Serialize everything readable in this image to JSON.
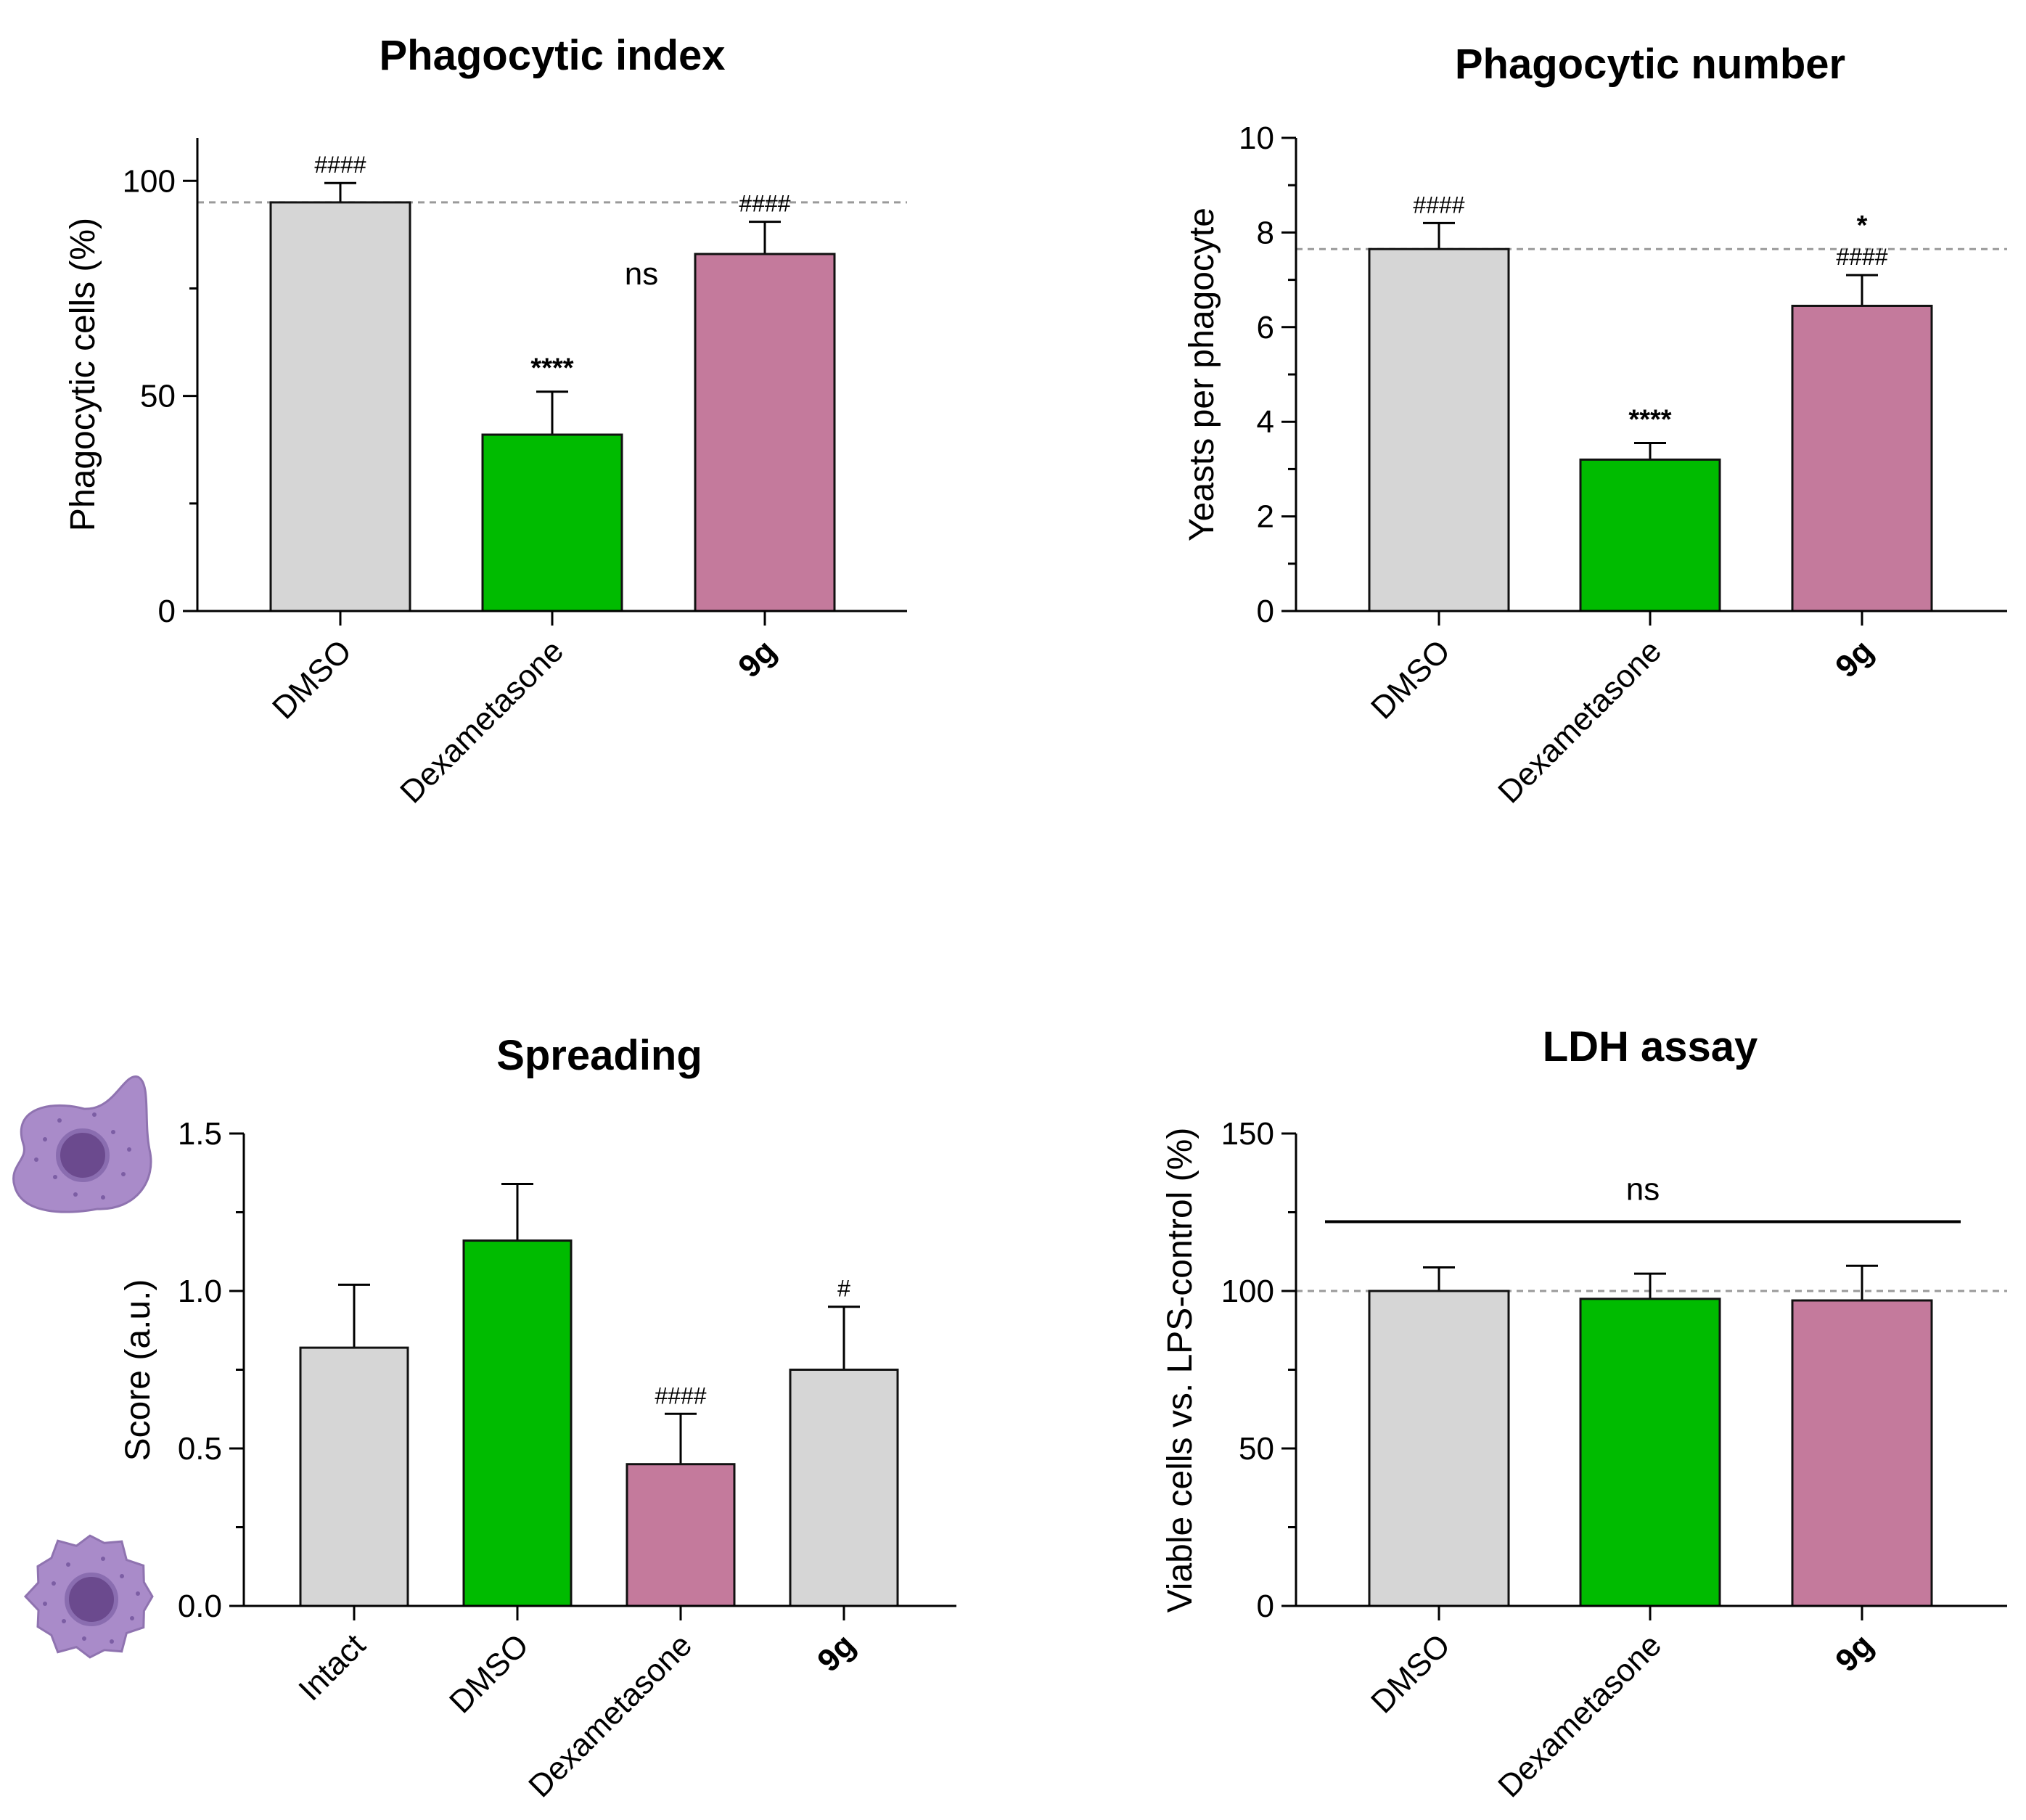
{
  "colors": {
    "gray": "#d6d6d6",
    "green": "#00bb00",
    "mauve": "#c47a9c",
    "cell_body": "#a98bc9",
    "cell_nucleus": "#6b4a8e"
  },
  "icons": {
    "spread_cell": "spread-macrophage-icon",
    "round_cell": "round-macrophage-icon"
  },
  "chart_data": [
    {
      "type": "bar",
      "title": "Phagocytic index",
      "xlabel": "",
      "ylabel": "Phagocytic cells (%)",
      "ylim": [
        0,
        110
      ],
      "yticks": [
        0,
        50,
        100
      ],
      "ytick_labels": [
        "0",
        "50",
        "100"
      ],
      "minor_ticks": [
        25,
        75
      ],
      "reference_line": 95,
      "categories": [
        "DMSO",
        "Dexametasone",
        "9g"
      ],
      "bold_categories": [
        "9g"
      ],
      "values": [
        95,
        41,
        83
      ],
      "errors": [
        4.5,
        10,
        7.5
      ],
      "bar_colors": [
        "#d6d6d6",
        "#00bb00",
        "#c47a9c"
      ],
      "annotations": [
        {
          "index": 0,
          "text": "####",
          "style": "hash"
        },
        {
          "index": 1,
          "text": "****",
          "style": "star"
        },
        {
          "index": 2,
          "text": "####",
          "style": "hash"
        }
      ],
      "faint_text": "ns"
    },
    {
      "type": "bar",
      "title": "Phagocytic number",
      "xlabel": "",
      "ylabel": "Yeasts per phagocyte",
      "ylim": [
        0,
        10
      ],
      "yticks": [
        0,
        2,
        4,
        6,
        8,
        10
      ],
      "ytick_labels": [
        "0",
        "2",
        "4",
        "6",
        "8",
        "10"
      ],
      "minor_ticks": [
        1,
        3,
        5,
        7,
        9
      ],
      "reference_line": 7.65,
      "categories": [
        "DMSO",
        "Dexametasone",
        "9g"
      ],
      "bold_categories": [
        "9g"
      ],
      "values": [
        7.65,
        3.2,
        6.45
      ],
      "errors": [
        0.55,
        0.35,
        0.65
      ],
      "bar_colors": [
        "#d6d6d6",
        "#00bb00",
        "#c47a9c"
      ],
      "annotations": [
        {
          "index": 0,
          "text": "####",
          "style": "hash"
        },
        {
          "index": 1,
          "text": "****",
          "style": "star"
        },
        {
          "index": 2,
          "text": "####",
          "style": "hash"
        },
        {
          "index": 2,
          "text": "*",
          "style": "star"
        }
      ]
    },
    {
      "type": "bar",
      "title": "Spreading",
      "xlabel": "",
      "ylabel": "Score (a.u.)",
      "ylim": [
        0,
        1.5
      ],
      "yticks": [
        0,
        0.5,
        1.0,
        1.5
      ],
      "ytick_labels": [
        "0.0",
        "0.5",
        "1.0",
        "1.5"
      ],
      "minor_ticks": [
        0.25,
        0.75,
        1.25
      ],
      "categories": [
        "Intact",
        "DMSO",
        "Dexametasone",
        "9g"
      ],
      "bold_categories": [
        "9g"
      ],
      "values": [
        0.82,
        1.16,
        0.45,
        0.75
      ],
      "errors": [
        0.2,
        0.18,
        0.16,
        0.2
      ],
      "bar_colors": [
        "#d6d6d6",
        "#00bb00",
        "#c47a9c",
        "#d6d6d6"
      ],
      "annotations": [
        {
          "index": 2,
          "text": "####",
          "style": "hash"
        },
        {
          "index": 3,
          "text": "#",
          "style": "hash"
        }
      ]
    },
    {
      "type": "bar",
      "title": "LDH assay",
      "xlabel": "",
      "ylabel": "Viable cells vs. LPS-control (%)",
      "ylim": [
        0,
        150
      ],
      "yticks": [
        0,
        50,
        100,
        150
      ],
      "ytick_labels": [
        "0",
        "50",
        "100",
        "150"
      ],
      "minor_ticks": [
        25,
        75,
        125
      ],
      "reference_line": 100,
      "categories": [
        "DMSO",
        "Dexametasone",
        "9g"
      ],
      "bold_categories": [
        "9g"
      ],
      "values": [
        100,
        97.5,
        97
      ],
      "errors": [
        7.5,
        8,
        11
      ],
      "bar_colors": [
        "#d6d6d6",
        "#00bb00",
        "#c47a9c"
      ],
      "bracket_label": "ns",
      "bracket_y": 122
    }
  ]
}
